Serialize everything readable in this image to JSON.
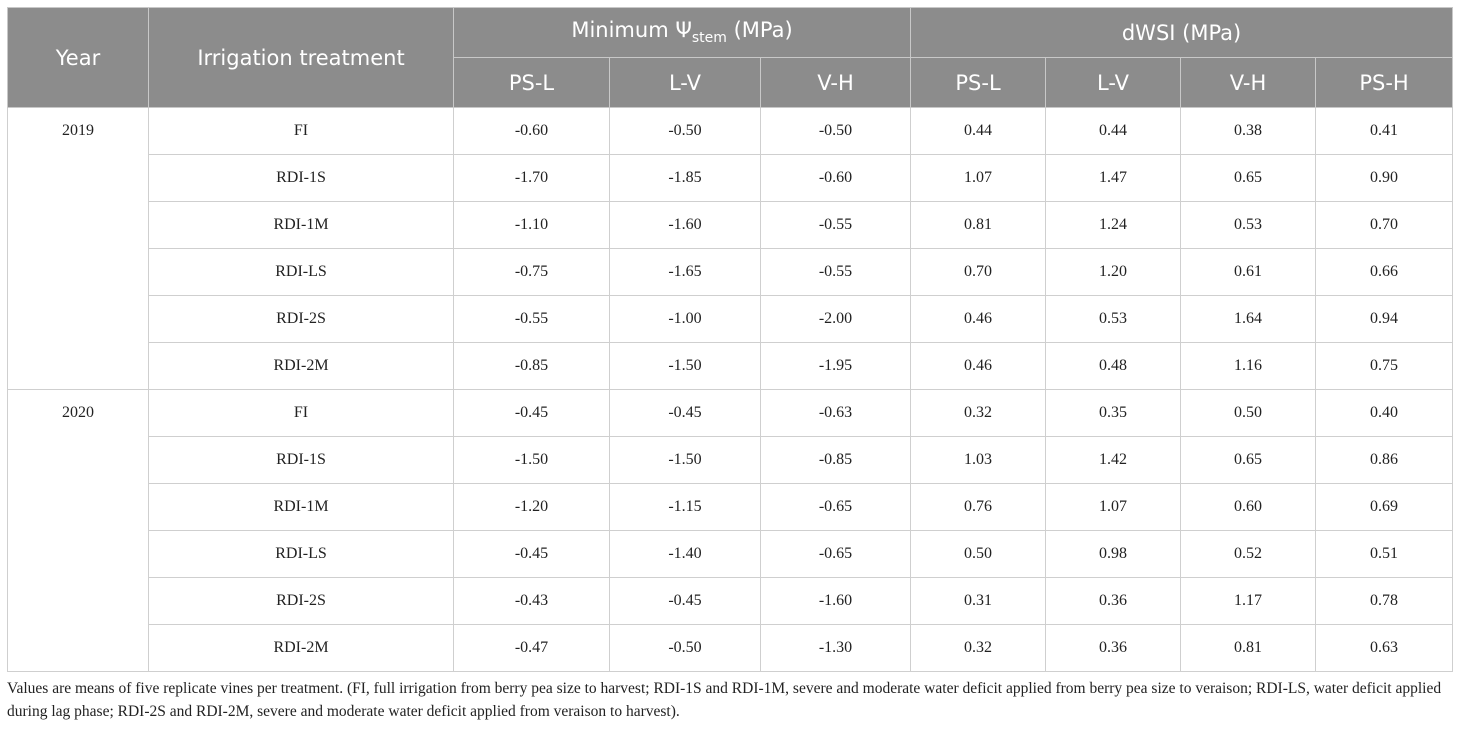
{
  "table": {
    "headers": {
      "year": "Year",
      "treatment": "Irrigation treatment",
      "group1_prefix": "Minimum Ψ",
      "group1_sub": "stem",
      "group1_suffix": " (MPa)",
      "group2": "dWSI (MPa)",
      "sub_columns": [
        "PS-L",
        "L-V",
        "V-H",
        "PS-L",
        "L-V",
        "V-H",
        "PS-H"
      ]
    },
    "rows": [
      {
        "year": "2019",
        "treatment": "FI",
        "values": [
          "-0.60",
          "-0.50",
          "-0.50",
          "0.44",
          "0.44",
          "0.38",
          "0.41"
        ]
      },
      {
        "year": "",
        "treatment": "RDI-1S",
        "values": [
          "-1.70",
          "-1.85",
          "-0.60",
          "1.07",
          "1.47",
          "0.65",
          "0.90"
        ]
      },
      {
        "year": "",
        "treatment": "RDI-1M",
        "values": [
          "-1.10",
          "-1.60",
          "-0.55",
          "0.81",
          "1.24",
          "0.53",
          "0.70"
        ]
      },
      {
        "year": "",
        "treatment": "RDI-LS",
        "values": [
          "-0.75",
          "-1.65",
          "-0.55",
          "0.70",
          "1.20",
          "0.61",
          "0.66"
        ]
      },
      {
        "year": "",
        "treatment": "RDI-2S",
        "values": [
          "-0.55",
          "-1.00",
          "-2.00",
          "0.46",
          "0.53",
          "1.64",
          "0.94"
        ]
      },
      {
        "year": "",
        "treatment": "RDI-2M",
        "values": [
          "-0.85",
          "-1.50",
          "-1.95",
          "0.46",
          "0.48",
          "1.16",
          "0.75"
        ]
      },
      {
        "year": "2020",
        "treatment": "FI",
        "values": [
          "-0.45",
          "-0.45",
          "-0.63",
          "0.32",
          "0.35",
          "0.50",
          "0.40"
        ]
      },
      {
        "year": "",
        "treatment": "RDI-1S",
        "values": [
          "-1.50",
          "-1.50",
          "-0.85",
          "1.03",
          "1.42",
          "0.65",
          "0.86"
        ]
      },
      {
        "year": "",
        "treatment": "RDI-1M",
        "values": [
          "-1.20",
          "-1.15",
          "-0.65",
          "0.76",
          "1.07",
          "0.60",
          "0.69"
        ]
      },
      {
        "year": "",
        "treatment": "RDI-LS",
        "values": [
          "-0.45",
          "-1.40",
          "-0.65",
          "0.50",
          "0.98",
          "0.52",
          "0.51"
        ]
      },
      {
        "year": "",
        "treatment": "RDI-2S",
        "values": [
          "-0.43",
          "-0.45",
          "-1.60",
          "0.31",
          "0.36",
          "1.17",
          "0.78"
        ]
      },
      {
        "year": "",
        "treatment": "RDI-2M",
        "values": [
          "-0.47",
          "-0.50",
          "-1.30",
          "0.32",
          "0.36",
          "0.81",
          "0.63"
        ]
      }
    ]
  },
  "footnote": "Values are means of five replicate vines per treatment. (FI, full irrigation from berry pea size to harvest; RDI-1S and RDI-1M, severe and moderate water deficit applied from berry pea size to veraison; RDI-LS, water deficit applied during lag phase; RDI-2S and RDI-2M, severe and moderate water deficit applied from veraison to harvest)."
}
